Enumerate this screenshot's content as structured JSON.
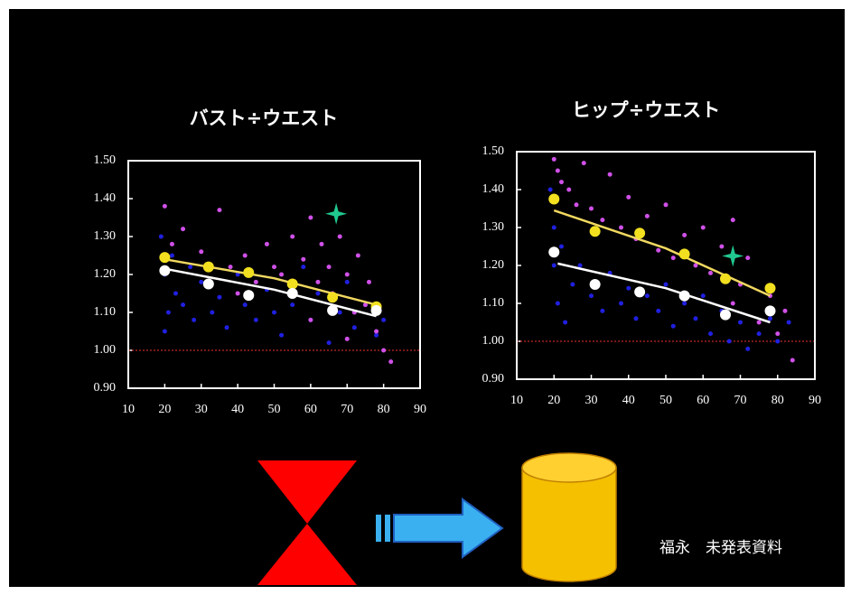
{
  "chart_data": [
    {
      "type": "scatter",
      "title": "バスト÷ウエスト",
      "xlim": [
        10,
        90
      ],
      "ylim": [
        0.9,
        1.5
      ],
      "xticks": [
        10,
        20,
        30,
        40,
        50,
        60,
        70,
        80,
        90
      ],
      "yticks": [
        {
          "value": 0.9,
          "label": "0.90"
        },
        {
          "value": 1.0,
          "label": "1.00"
        },
        {
          "value": 1.1,
          "label": "1.10"
        },
        {
          "value": 1.2,
          "label": "1.20"
        },
        {
          "value": 1.3,
          "label": "1.30"
        },
        {
          "value": 1.4,
          "label": "1.40"
        },
        {
          "value": 1.5,
          "label": "1.50"
        }
      ],
      "reference_line": {
        "value": 1.0,
        "color": "#a02020"
      },
      "series": [
        {
          "marker": "dot",
          "color": "#2020e0",
          "x": [
            19,
            20,
            21,
            22,
            20,
            23,
            25,
            27,
            28,
            30,
            33,
            35,
            37,
            40,
            42,
            45,
            48,
            50,
            52,
            55,
            58,
            60,
            62,
            65,
            68,
            70,
            72,
            75,
            78,
            80
          ],
          "values": [
            1.3,
            1.2,
            1.1,
            1.25,
            1.05,
            1.15,
            1.12,
            1.22,
            1.08,
            1.18,
            1.1,
            1.14,
            1.06,
            1.2,
            1.12,
            1.08,
            1.16,
            1.1,
            1.04,
            1.12,
            1.22,
            1.08,
            1.15,
            1.02,
            1.1,
            1.18,
            1.06,
            1.12,
            1.04,
            1.08
          ]
        },
        {
          "marker": "dot",
          "color": "#d050e8",
          "x": [
            20,
            22,
            25,
            30,
            35,
            38,
            42,
            45,
            48,
            52,
            55,
            58,
            60,
            62,
            63,
            65,
            66,
            68,
            70,
            72,
            73,
            75,
            76,
            78,
            80,
            82,
            70,
            60,
            50,
            40
          ],
          "values": [
            1.38,
            1.28,
            1.32,
            1.26,
            1.37,
            1.22,
            1.25,
            1.18,
            1.28,
            1.2,
            1.3,
            1.24,
            1.35,
            1.18,
            1.28,
            1.22,
            1.15,
            1.3,
            1.2,
            1.1,
            1.25,
            1.12,
            1.18,
            1.05,
            1.0,
            0.97,
            1.03,
            1.08,
            1.22,
            1.15
          ]
        },
        {
          "marker": "line",
          "color": "#f0d860",
          "x": [
            20,
            50,
            78
          ],
          "values": [
            1.24,
            1.19,
            1.12
          ]
        },
        {
          "marker": "line",
          "color": "#ffffff",
          "x": [
            20,
            50,
            78
          ],
          "values": [
            1.215,
            1.16,
            1.09
          ]
        },
        {
          "marker": "circle",
          "color": "#f2e020",
          "x": [
            20,
            32,
            43,
            55,
            66,
            78
          ],
          "values": [
            1.245,
            1.22,
            1.205,
            1.175,
            1.14,
            1.115
          ]
        },
        {
          "marker": "circle",
          "color": "#ffffff",
          "x": [
            20,
            32,
            43,
            55,
            66,
            78
          ],
          "values": [
            1.21,
            1.175,
            1.145,
            1.15,
            1.105,
            1.105
          ]
        },
        {
          "marker": "star",
          "color": "#20c890",
          "x": [
            67
          ],
          "values": [
            1.36
          ]
        }
      ]
    },
    {
      "type": "scatter",
      "title": "ヒップ÷ウエスト",
      "xlim": [
        10,
        90
      ],
      "ylim": [
        0.9,
        1.5
      ],
      "xticks": [
        10,
        20,
        30,
        40,
        50,
        60,
        70,
        80,
        90
      ],
      "yticks": [
        {
          "value": 0.9,
          "label": "0.90"
        },
        {
          "value": 1.0,
          "label": "1.00"
        },
        {
          "value": 1.1,
          "label": "1.10"
        },
        {
          "value": 1.2,
          "label": "1.20"
        },
        {
          "value": 1.3,
          "label": "1.30"
        },
        {
          "value": 1.4,
          "label": "1.40"
        },
        {
          "value": 1.5,
          "label": "1.50"
        }
      ],
      "reference_line": {
        "value": 1.0,
        "color": "#a02020"
      },
      "series": [
        {
          "marker": "dot",
          "color": "#2020e0",
          "x": [
            19,
            20,
            20,
            21,
            22,
            23,
            25,
            27,
            30,
            33,
            35,
            38,
            40,
            42,
            45,
            48,
            50,
            52,
            55,
            58,
            60,
            62,
            65,
            67,
            70,
            72,
            75,
            78,
            80,
            83
          ],
          "values": [
            1.4,
            1.3,
            1.2,
            1.1,
            1.25,
            1.05,
            1.15,
            1.2,
            1.12,
            1.08,
            1.18,
            1.1,
            1.14,
            1.06,
            1.12,
            1.08,
            1.15,
            1.04,
            1.1,
            1.06,
            1.12,
            1.02,
            1.08,
            1.0,
            1.05,
            0.98,
            1.02,
            1.06,
            1.0,
            1.05
          ]
        },
        {
          "marker": "dot",
          "color": "#d050e8",
          "x": [
            20,
            21,
            22,
            24,
            26,
            28,
            30,
            33,
            35,
            38,
            40,
            42,
            45,
            48,
            50,
            52,
            55,
            58,
            60,
            62,
            65,
            68,
            70,
            72,
            75,
            78,
            80,
            82,
            68,
            84
          ],
          "values": [
            1.48,
            1.45,
            1.42,
            1.4,
            1.36,
            1.47,
            1.35,
            1.32,
            1.44,
            1.3,
            1.38,
            1.27,
            1.33,
            1.24,
            1.36,
            1.22,
            1.28,
            1.2,
            1.3,
            1.18,
            1.25,
            1.1,
            1.15,
            1.22,
            1.05,
            1.12,
            1.02,
            1.08,
            1.32,
            0.95
          ]
        },
        {
          "marker": "line",
          "color": "#f0d860",
          "x": [
            20,
            50,
            78
          ],
          "values": [
            1.345,
            1.245,
            1.12
          ]
        },
        {
          "marker": "line",
          "color": "#ffffff",
          "x": [
            21,
            50,
            78
          ],
          "values": [
            1.205,
            1.14,
            1.05
          ]
        },
        {
          "marker": "circle",
          "color": "#f2e020",
          "x": [
            20,
            31,
            43,
            55,
            66,
            78
          ],
          "values": [
            1.375,
            1.29,
            1.285,
            1.23,
            1.165,
            1.14
          ]
        },
        {
          "marker": "circle",
          "color": "#ffffff",
          "x": [
            20,
            31,
            43,
            55,
            66,
            78
          ],
          "values": [
            1.235,
            1.15,
            1.13,
            1.12,
            1.07,
            1.08
          ]
        },
        {
          "marker": "star",
          "color": "#20c890",
          "x": [
            68
          ],
          "values": [
            1.225
          ]
        }
      ]
    }
  ],
  "footer": {
    "note": "福永　未発表資料"
  }
}
